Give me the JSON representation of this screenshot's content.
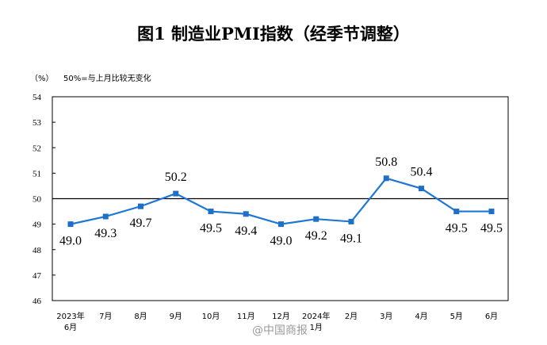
{
  "chart_data": {
    "type": "line",
    "title": "图1  制造业PMI指数（经季节调整）",
    "unit_label": "（%）",
    "note": "50%=与上月比较无变化",
    "categories": [
      "2023年\n6月",
      "7月",
      "8月",
      "9月",
      "10月",
      "11月",
      "12月",
      "2024年\n1月",
      "2月",
      "3月",
      "4月",
      "5月",
      "6月"
    ],
    "values": [
      49.0,
      49.3,
      49.7,
      50.2,
      49.5,
      49.4,
      49.0,
      49.2,
      49.1,
      50.8,
      50.4,
      49.5,
      49.5
    ],
    "data_labels": [
      "49.0",
      "49.3",
      "49.7",
      "50.2",
      "49.5",
      "49.4",
      "49.0",
      "49.2",
      "49.1",
      "50.8",
      "50.4",
      "49.5",
      "49.5"
    ],
    "label_position": [
      "below",
      "below",
      "below",
      "above",
      "below",
      "below",
      "below",
      "below",
      "below",
      "above",
      "above",
      "below",
      "below"
    ],
    "ylim": [
      46,
      54
    ],
    "yticks": [
      "46",
      "47",
      "48",
      "49",
      "50",
      "51",
      "52",
      "53",
      "54"
    ],
    "reference_line": 50,
    "grid": false,
    "line_color": "#1f77d4",
    "marker_color": "#1f6fc7"
  },
  "watermark": "@中国商报"
}
